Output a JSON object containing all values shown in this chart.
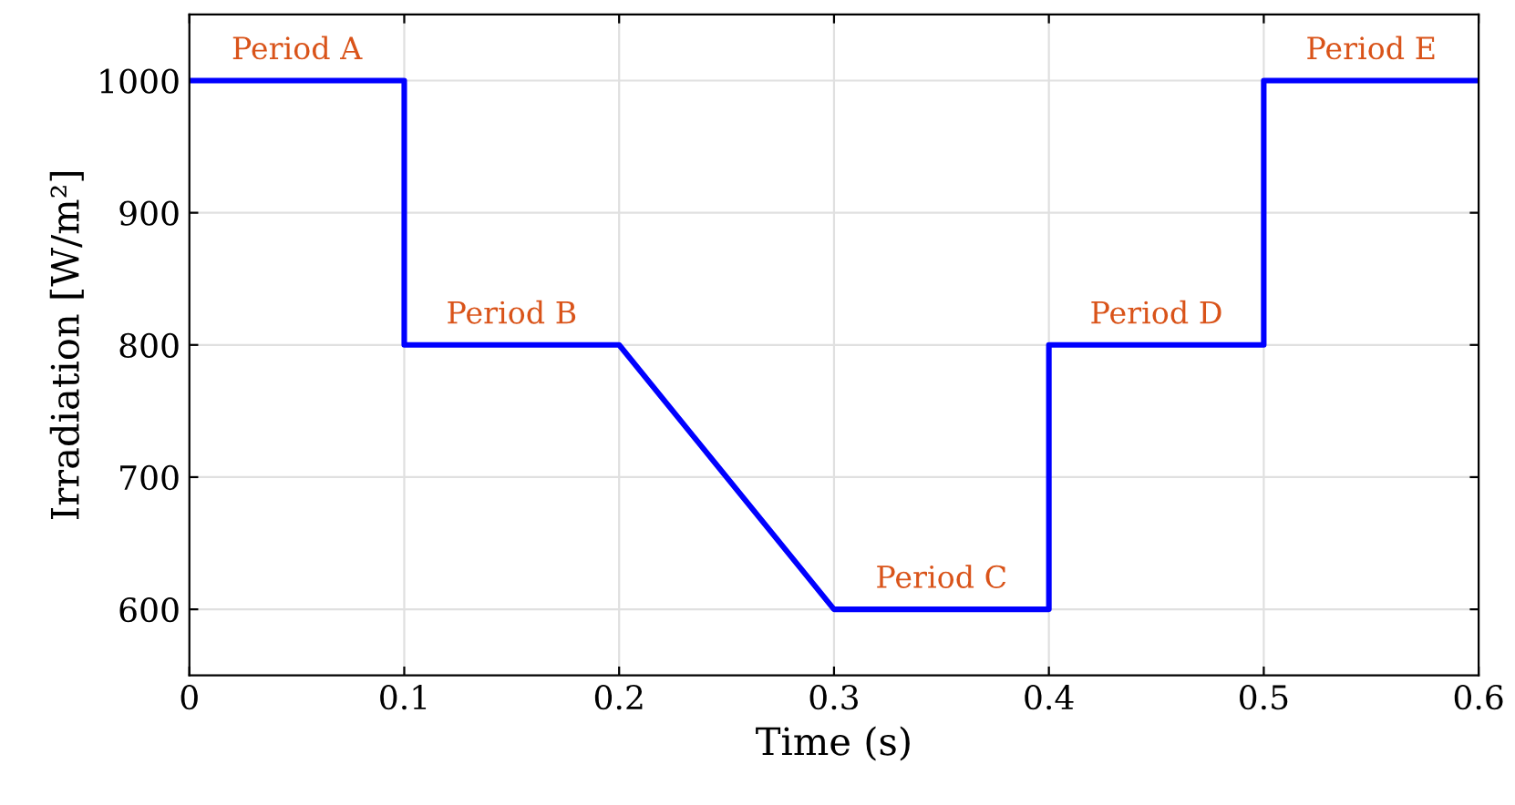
{
  "chart_data": {
    "type": "line",
    "xlabel": "Time (s)",
    "ylabel": "Irradiation [W/m²]",
    "x": [
      0,
      0.1,
      0.1,
      0.2,
      0.3,
      0.4,
      0.4,
      0.5,
      0.5,
      0.6
    ],
    "series": [
      {
        "color": "#0000ff",
        "values": [
          1000,
          1000,
          800,
          800,
          600,
          600,
          800,
          800,
          1000,
          1000
        ]
      }
    ],
    "xlim": [
      0,
      0.6
    ],
    "xticks": [
      0,
      0.1,
      0.2,
      0.3,
      0.4,
      0.5,
      0.6
    ],
    "ylim": [
      550,
      1050
    ],
    "yticks": [
      600,
      700,
      800,
      900,
      1000
    ],
    "grid": true,
    "marker": "none",
    "line_style": "solid",
    "legend": false,
    "annotations": [
      {
        "text": "Period A",
        "x": 0.05,
        "y": 1000
      },
      {
        "text": "Period B",
        "x": 0.15,
        "y": 800
      },
      {
        "text": "Period C",
        "x": 0.35,
        "y": 600
      },
      {
        "text": "Period D",
        "x": 0.45,
        "y": 800
      },
      {
        "text": "Period E",
        "x": 0.55,
        "y": 1000
      }
    ]
  }
}
